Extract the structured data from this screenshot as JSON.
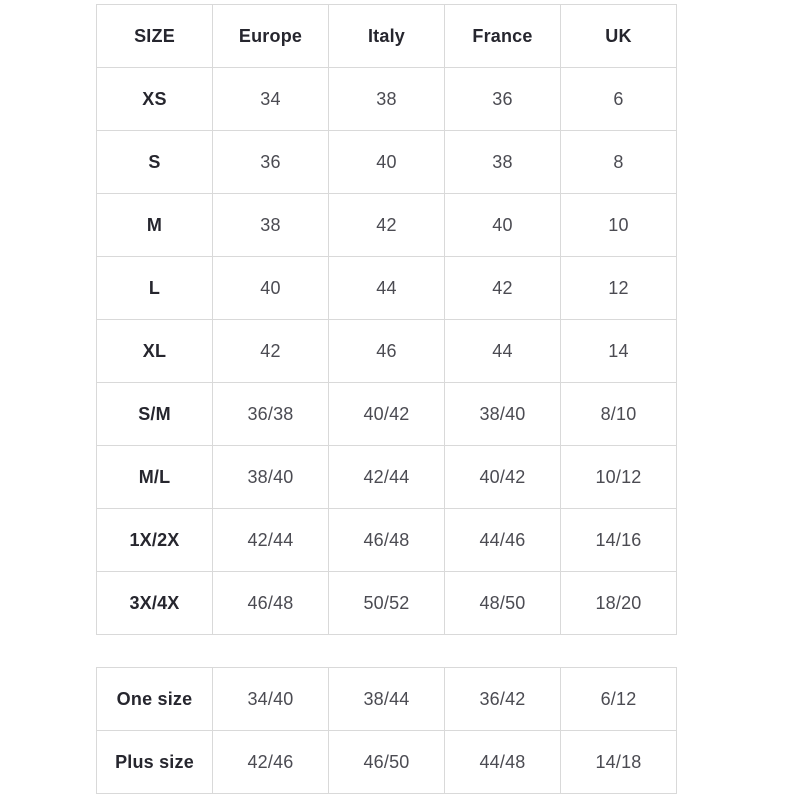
{
  "colors": {
    "background": "#ffffff",
    "border": "#d9d9d9",
    "header_text": "#26262e",
    "value_text": "#4b4b52"
  },
  "main_table": {
    "headers": [
      "SIZE",
      "Europe",
      "Italy",
      "France",
      "UK"
    ],
    "rows": [
      {
        "size": "XS",
        "values": [
          "34",
          "38",
          "36",
          "6"
        ]
      },
      {
        "size": "S",
        "values": [
          "36",
          "40",
          "38",
          "8"
        ]
      },
      {
        "size": "M",
        "values": [
          "38",
          "42",
          "40",
          "10"
        ]
      },
      {
        "size": "L",
        "values": [
          "40",
          "44",
          "42",
          "12"
        ]
      },
      {
        "size": "XL",
        "values": [
          "42",
          "46",
          "44",
          "14"
        ]
      },
      {
        "size": "S/M",
        "values": [
          "36/38",
          "40/42",
          "38/40",
          "8/10"
        ]
      },
      {
        "size": "M/L",
        "values": [
          "38/40",
          "42/44",
          "40/42",
          "10/12"
        ]
      },
      {
        "size": "1X/2X",
        "values": [
          "42/44",
          "46/48",
          "44/46",
          "14/16"
        ]
      },
      {
        "size": "3X/4X",
        "values": [
          "46/48",
          "50/52",
          "48/50",
          "18/20"
        ]
      }
    ]
  },
  "secondary_table": {
    "rows": [
      {
        "size": "One size",
        "values": [
          "34/40",
          "38/44",
          "36/42",
          "6/12"
        ]
      },
      {
        "size": "Plus size",
        "values": [
          "42/46",
          "46/50",
          "44/48",
          "14/18"
        ]
      }
    ]
  }
}
